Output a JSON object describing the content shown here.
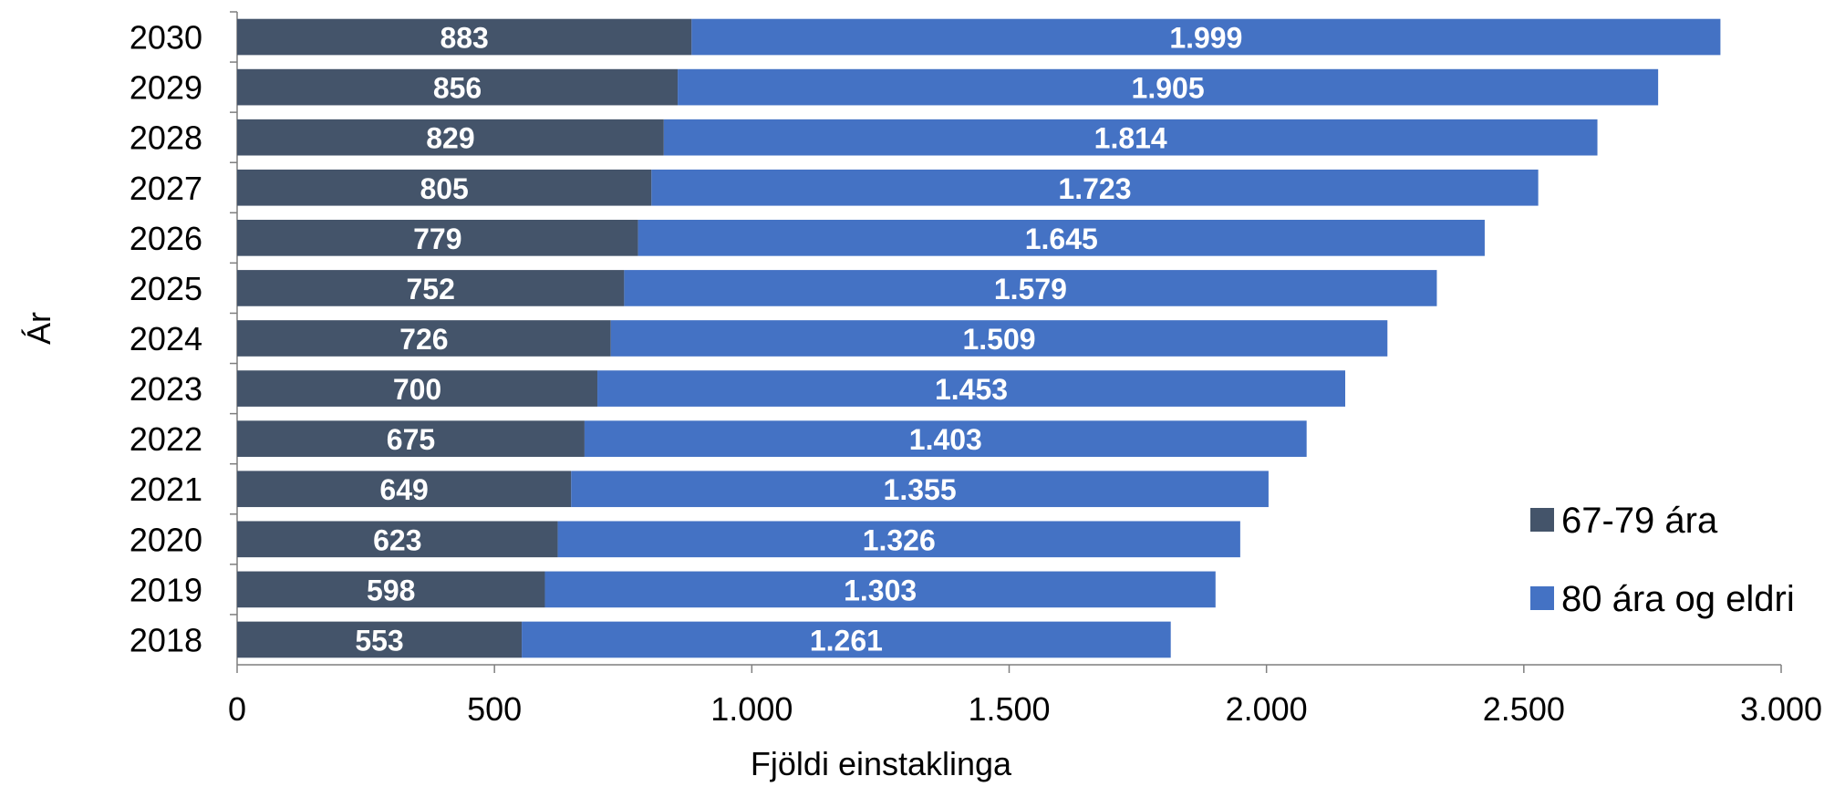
{
  "chart_data": {
    "type": "bar",
    "orientation": "horizontal",
    "stacked": true,
    "title": "",
    "xlabel": "Fjöldi einstaklinga",
    "ylabel": "Ár",
    "categories": [
      "2018",
      "2019",
      "2020",
      "2021",
      "2022",
      "2023",
      "2024",
      "2025",
      "2026",
      "2027",
      "2028",
      "2029",
      "2030"
    ],
    "series": [
      {
        "name": "67-79 ára",
        "color": "#44546a",
        "values": [
          553,
          598,
          623,
          649,
          675,
          700,
          726,
          752,
          779,
          805,
          829,
          856,
          883
        ],
        "labels": [
          "553",
          "598",
          "623",
          "649",
          "675",
          "700",
          "726",
          "752",
          "779",
          "805",
          "829",
          "856",
          "883"
        ]
      },
      {
        "name": "80 ára og eldri",
        "color": "#4472c4",
        "values": [
          1261,
          1303,
          1326,
          1355,
          1403,
          1453,
          1509,
          1579,
          1645,
          1723,
          1814,
          1905,
          1999
        ],
        "labels": [
          "1.261",
          "1.303",
          "1.326",
          "1.355",
          "1.403",
          "1.453",
          "1.509",
          "1.579",
          "1.645",
          "1.723",
          "1.814",
          "1.905",
          "1.999"
        ]
      }
    ],
    "xlim": [
      0,
      3000
    ],
    "xticks": [
      0,
      500,
      1000,
      1500,
      2000,
      2500,
      3000
    ],
    "xtick_labels": [
      "0",
      "500",
      "1.000",
      "1.500",
      "2.000",
      "2.500",
      "3.000"
    ],
    "grid": false,
    "legend_position": "right"
  }
}
